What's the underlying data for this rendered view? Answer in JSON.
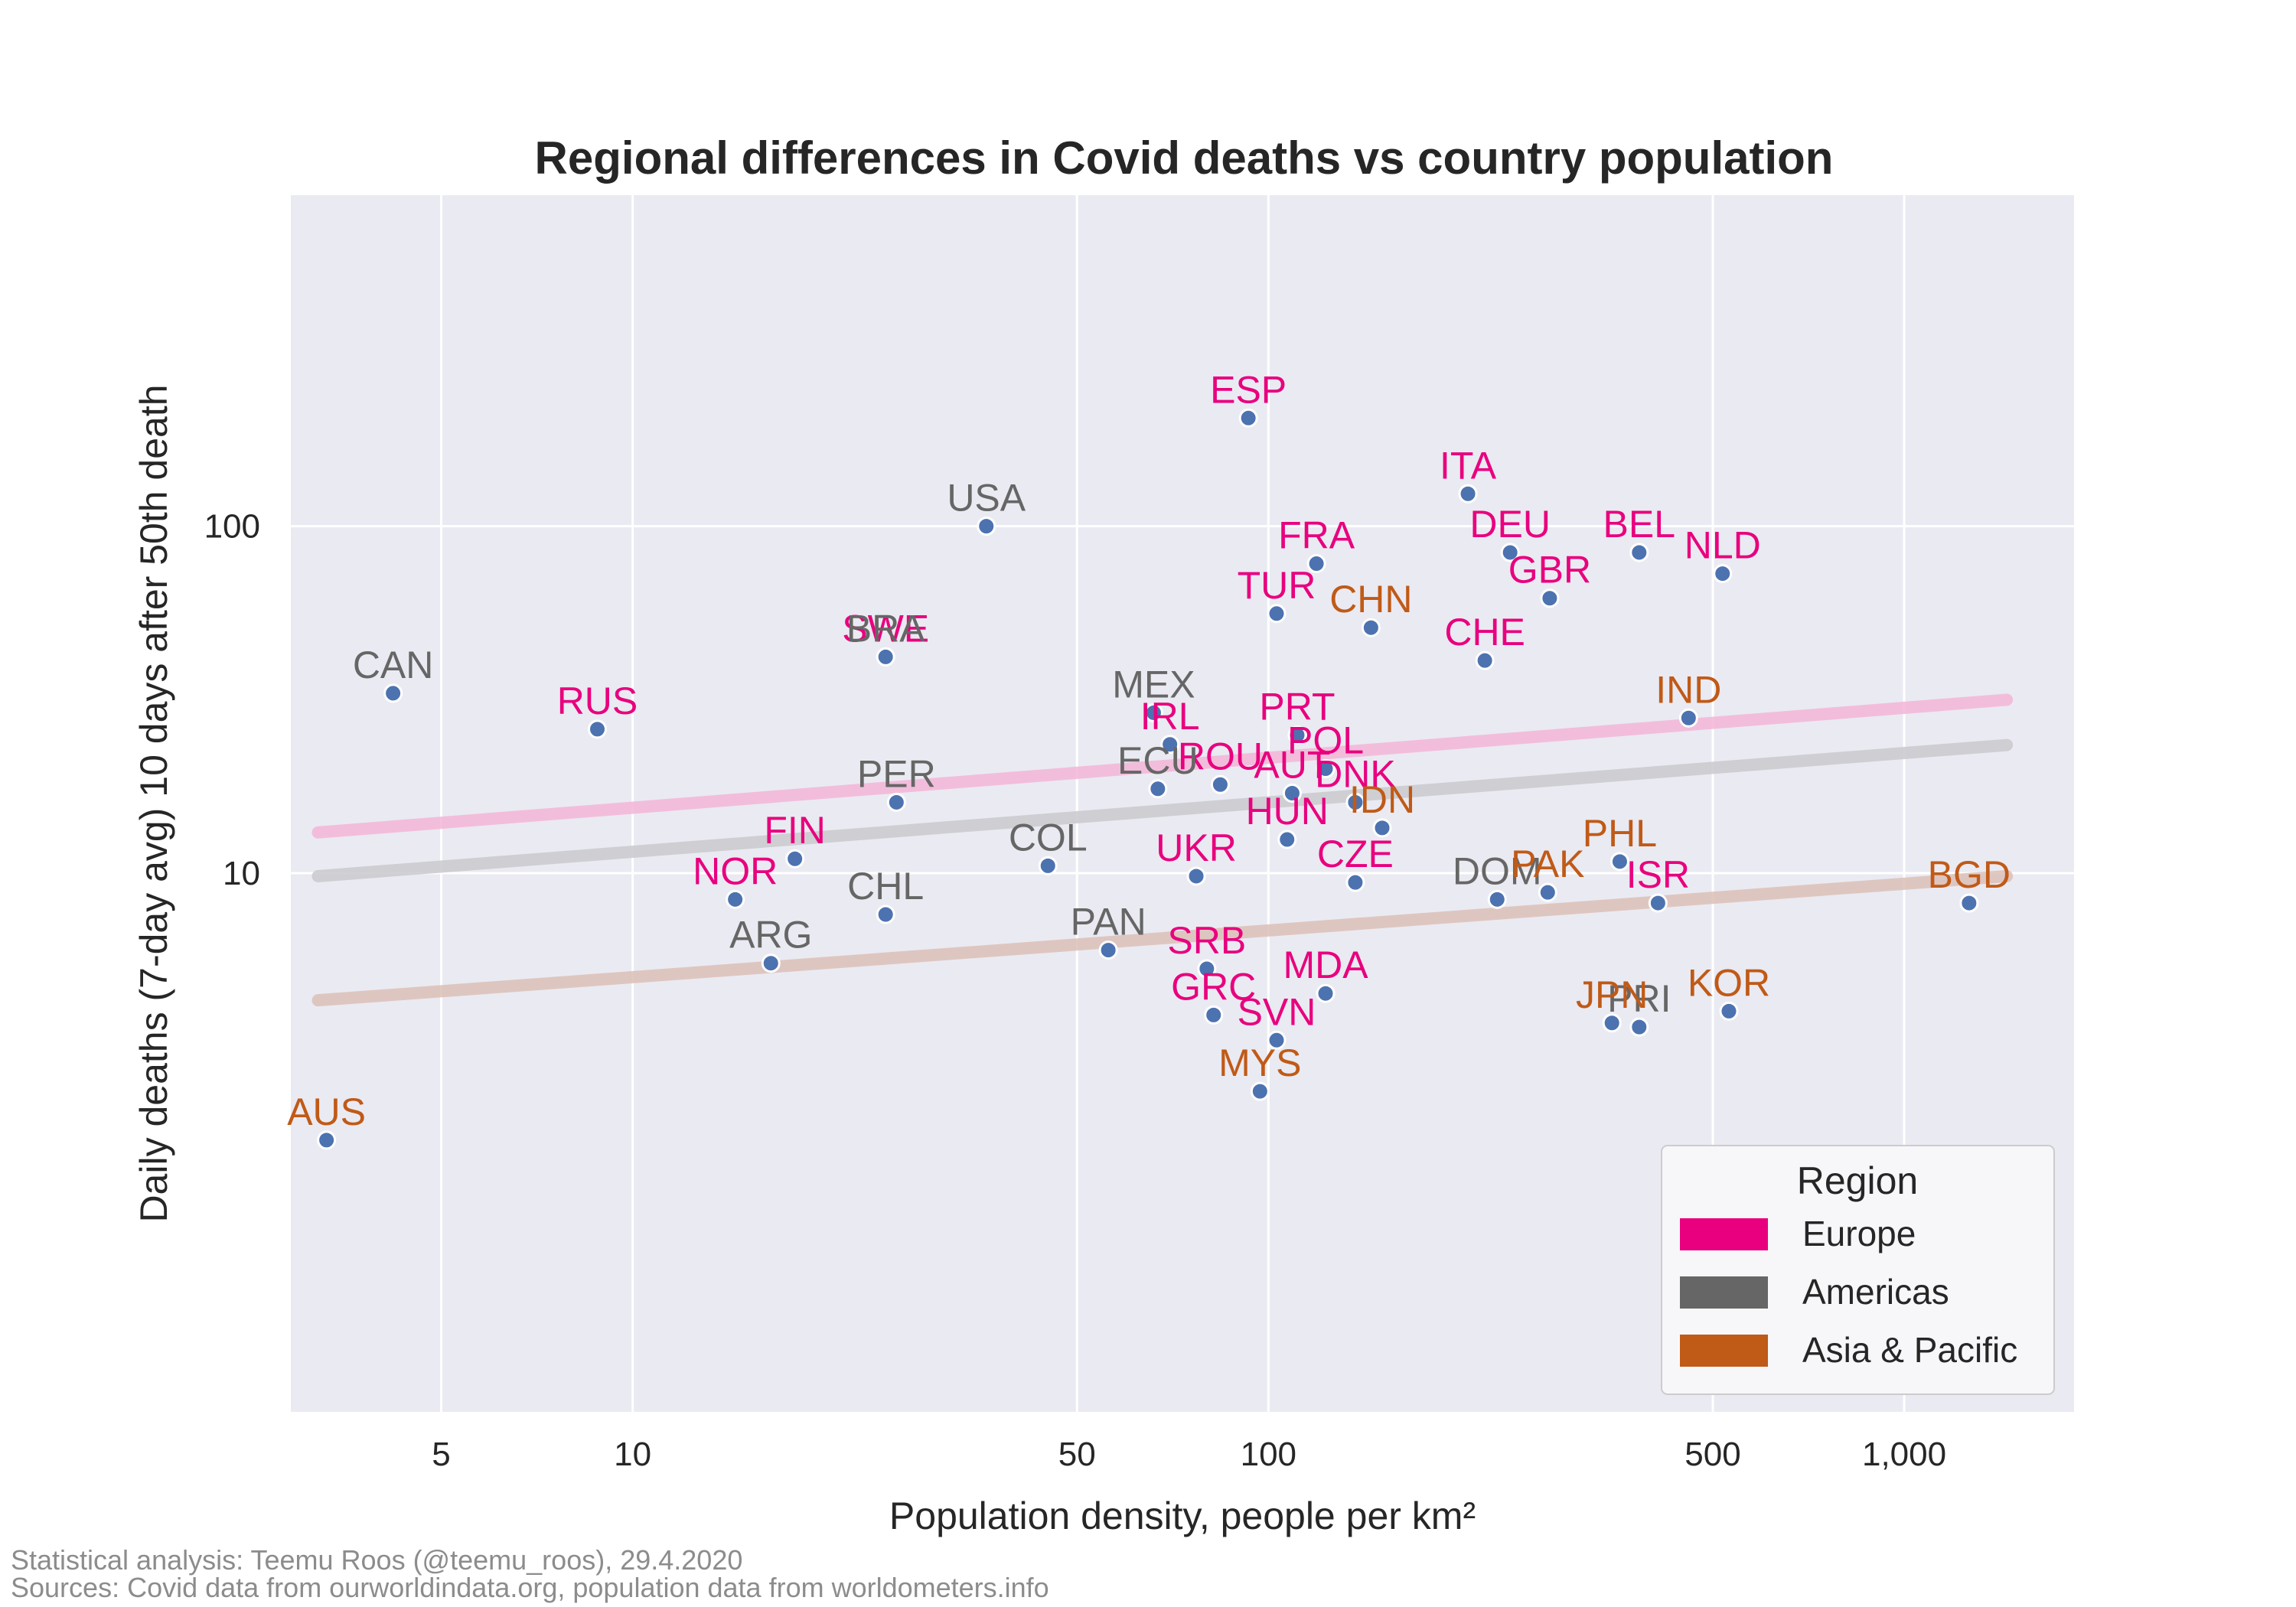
{
  "chart_data": {
    "type": "scatter",
    "title": "Regional differences in Covid deaths vs country population",
    "xlabel": "Population density, people per km²",
    "ylabel": "Daily deaths (7-day avg) 10 days after 50th death",
    "xscale": "log",
    "yscale": "log",
    "xlim": [
      2.9,
      1850
    ],
    "ylim": [
      0.28,
      900
    ],
    "grid": true,
    "x_ticks": [
      {
        "value": 5,
        "label": "5"
      },
      {
        "value": 10,
        "label": "10"
      },
      {
        "value": 50,
        "label": "50"
      },
      {
        "value": 100,
        "label": "100"
      },
      {
        "value": 500,
        "label": "500"
      },
      {
        "value": 1000,
        "label": "1,000"
      }
    ],
    "y_ticks": [
      {
        "value": 10,
        "label": "10"
      },
      {
        "value": 100,
        "label": "100"
      }
    ],
    "legend": {
      "title": "Region",
      "placement": "lower-right",
      "entries": [
        {
          "name": "Europe",
          "color": "#e8007e"
        },
        {
          "name": "Americas",
          "color": "#666666"
        },
        {
          "name": "Asia & Pacific",
          "color": "#c05a17"
        }
      ]
    },
    "region_colors": {
      "Europe": "#e8007e",
      "Americas": "#666666",
      "Asia & Pacific": "#c05a17"
    },
    "point_color": "#4c72b0",
    "trend_lines": [
      {
        "region": "Europe",
        "color": "#f4b6d8",
        "x": [
          3.2,
          1450
        ],
        "y": [
          13.1,
          31.6
        ]
      },
      {
        "region": "Americas",
        "color": "#cacace",
        "x": [
          3.2,
          1450
        ],
        "y": [
          9.8,
          23.4
        ]
      },
      {
        "region": "Asia & Pacific",
        "color": "#dcc0b8",
        "x": [
          3.2,
          1450
        ],
        "y": [
          4.3,
          9.8
        ]
      }
    ],
    "points": [
      {
        "label": "ESP",
        "region": "Europe",
        "x": 93,
        "y": 205
      },
      {
        "label": "ITA",
        "region": "Europe",
        "x": 206,
        "y": 124
      },
      {
        "label": "DEU",
        "region": "Europe",
        "x": 240,
        "y": 84
      },
      {
        "label": "BEL",
        "region": "Europe",
        "x": 383,
        "y": 84
      },
      {
        "label": "NLD",
        "region": "Europe",
        "x": 518,
        "y": 73
      },
      {
        "label": "FRA",
        "region": "Europe",
        "x": 119,
        "y": 78
      },
      {
        "label": "GBR",
        "region": "Europe",
        "x": 277,
        "y": 62
      },
      {
        "label": "TUR",
        "region": "Europe",
        "x": 103,
        "y": 56
      },
      {
        "label": "SWE",
        "region": "Europe",
        "x": 25,
        "y": 42
      },
      {
        "label": "CHE",
        "region": "Europe",
        "x": 219,
        "y": 41
      },
      {
        "label": "RUS",
        "region": "Europe",
        "x": 8.8,
        "y": 26
      },
      {
        "label": "PRT",
        "region": "Europe",
        "x": 111,
        "y": 25
      },
      {
        "label": "IRL",
        "region": "Europe",
        "x": 70,
        "y": 23.5
      },
      {
        "label": "POL",
        "region": "Europe",
        "x": 123,
        "y": 20
      },
      {
        "label": "ROU",
        "region": "Europe",
        "x": 84,
        "y": 18
      },
      {
        "label": "AUT",
        "region": "Europe",
        "x": 109,
        "y": 17
      },
      {
        "label": "DNK",
        "region": "Europe",
        "x": 137,
        "y": 16
      },
      {
        "label": "HUN",
        "region": "Europe",
        "x": 107,
        "y": 12.5
      },
      {
        "label": "FIN",
        "region": "Europe",
        "x": 18,
        "y": 11
      },
      {
        "label": "UKR",
        "region": "Europe",
        "x": 77,
        "y": 9.8
      },
      {
        "label": "CZE",
        "region": "Europe",
        "x": 137,
        "y": 9.4
      },
      {
        "label": "NOR",
        "region": "Europe",
        "x": 14.5,
        "y": 8.4
      },
      {
        "label": "ISR",
        "region": "Europe",
        "x": 410,
        "y": 8.2
      },
      {
        "label": "SRB",
        "region": "Europe",
        "x": 80,
        "y": 5.3
      },
      {
        "label": "MDA",
        "region": "Europe",
        "x": 123,
        "y": 4.5
      },
      {
        "label": "GRC",
        "region": "Europe",
        "x": 82,
        "y": 3.9
      },
      {
        "label": "SVN",
        "region": "Europe",
        "x": 103,
        "y": 3.3
      },
      {
        "label": "USA",
        "region": "Americas",
        "x": 36,
        "y": 100
      },
      {
        "label": "BRA",
        "region": "Americas",
        "x": 25,
        "y": 42
      },
      {
        "label": "CAN",
        "region": "Americas",
        "x": 4.2,
        "y": 33
      },
      {
        "label": "MEX",
        "region": "Americas",
        "x": 66,
        "y": 29
      },
      {
        "label": "ECU",
        "region": "Americas",
        "x": 67,
        "y": 17.5
      },
      {
        "label": "PER",
        "region": "Americas",
        "x": 26,
        "y": 16
      },
      {
        "label": "COL",
        "region": "Americas",
        "x": 45,
        "y": 10.5
      },
      {
        "label": "CHL",
        "region": "Americas",
        "x": 25,
        "y": 7.6
      },
      {
        "label": "DOM",
        "region": "Americas",
        "x": 229,
        "y": 8.4
      },
      {
        "label": "ARG",
        "region": "Americas",
        "x": 16.5,
        "y": 5.5
      },
      {
        "label": "PAN",
        "region": "Americas",
        "x": 56,
        "y": 6.0
      },
      {
        "label": "PRI",
        "region": "Americas",
        "x": 383,
        "y": 3.6
      },
      {
        "label": "CHN",
        "region": "Asia & Pacific",
        "x": 145,
        "y": 51
      },
      {
        "label": "IND",
        "region": "Asia & Pacific",
        "x": 458,
        "y": 28
      },
      {
        "label": "IDN",
        "region": "Asia & Pacific",
        "x": 151,
        "y": 13.5
      },
      {
        "label": "PHL",
        "region": "Asia & Pacific",
        "x": 357,
        "y": 10.8
      },
      {
        "label": "PAK",
        "region": "Asia & Pacific",
        "x": 275,
        "y": 8.8
      },
      {
        "label": "BGD",
        "region": "Asia & Pacific",
        "x": 1265,
        "y": 8.2
      },
      {
        "label": "KOR",
        "region": "Asia & Pacific",
        "x": 530,
        "y": 4.0
      },
      {
        "label": "JPN",
        "region": "Asia & Pacific",
        "x": 347,
        "y": 3.7
      },
      {
        "label": "MYS",
        "region": "Asia & Pacific",
        "x": 97,
        "y": 2.35
      },
      {
        "label": "AUS",
        "region": "Asia & Pacific",
        "x": 3.3,
        "y": 1.7
      }
    ]
  },
  "footer": {
    "line1": "Statistical analysis: Teemu Roos (@teemu_roos), 29.4.2020",
    "line2": "Sources: Covid data from ourworldindata.org, population data from worldometers.info"
  }
}
